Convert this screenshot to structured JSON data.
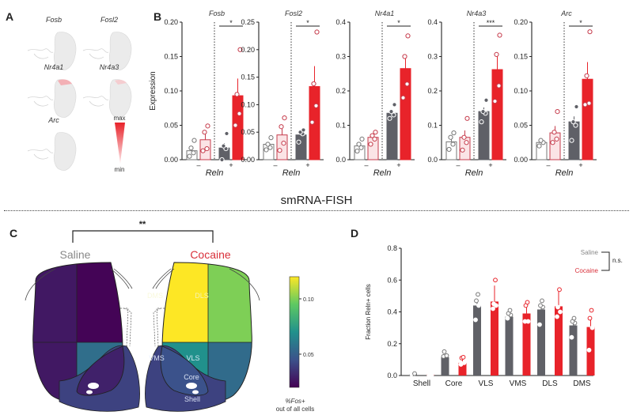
{
  "panels": {
    "A": {
      "letter": "A",
      "maps": [
        {
          "gene": "Fosb"
        },
        {
          "gene": "Fosl2"
        },
        {
          "gene": "Nr4a1"
        },
        {
          "gene": "Nr4a3"
        },
        {
          "gene": "Arc"
        }
      ],
      "legend": {
        "max": "max",
        "min": "min",
        "color": "#e8232a"
      }
    },
    "B": {
      "letter": "B"
    },
    "section_title": "smRNA-FISH",
    "C": {
      "letter": "C",
      "significance": "**",
      "saline_label": "Saline",
      "cocaine_label": "Cocaine",
      "saline_color": "#888888",
      "cocaine_color": "#d9303a",
      "region_labels": [
        "DMS",
        "DLS",
        "VMS",
        "VLS",
        "Core",
        "Shell"
      ],
      "colorbar": {
        "ticks": [
          "0.10",
          "0.05"
        ],
        "label_line1": "%Fos+",
        "label_line2": "out of all cells"
      }
    },
    "D": {
      "letter": "D"
    }
  },
  "chart_data": [
    {
      "type": "bar",
      "title": "Fosb",
      "ylabel": "Expression",
      "xlabel": "Reln",
      "xtick_labels": [
        "–",
        "+"
      ],
      "ylim": [
        0,
        0.2
      ],
      "yticks": [
        "0.00",
        "0.05",
        "0.10",
        "0.15",
        "0.20"
      ],
      "ytick_values": [
        0,
        0.05,
        0.1,
        0.15,
        0.2
      ],
      "significance": "*",
      "series": [
        {
          "name": "Reln- Saline",
          "value": 0.013,
          "err": 0.005,
          "points": [
            0.005,
            0.01,
            0.017,
            0.028
          ]
        },
        {
          "name": "Reln- Cocaine",
          "value": 0.029,
          "err": 0.008,
          "points": [
            0.013,
            0.016,
            0.04,
            0.049
          ]
        },
        {
          "name": "Reln+ Saline",
          "value": 0.017,
          "err": 0.007,
          "points": [
            0.0,
            0.016,
            0.02,
            0.038
          ]
        },
        {
          "name": "Reln+ Cocaine",
          "value": 0.093,
          "err": 0.025,
          "points": [
            0.05,
            0.067,
            0.095,
            0.16
          ]
        }
      ]
    },
    {
      "type": "bar",
      "title": "Fosl2",
      "ylabel": "",
      "xlabel": "Reln",
      "xtick_labels": [
        "–",
        "+"
      ],
      "ylim": [
        0,
        0.25
      ],
      "yticks": [
        "0.00",
        "0.05",
        "0.10",
        "0.15",
        "0.20",
        "0.25"
      ],
      "ytick_values": [
        0,
        0.05,
        0.1,
        0.15,
        0.2,
        0.25
      ],
      "significance": "*",
      "series": [
        {
          "name": "Reln- Saline",
          "value": 0.028,
          "err": 0.004,
          "points": [
            0.018,
            0.022,
            0.028,
            0.04
          ]
        },
        {
          "name": "Reln- Cocaine",
          "value": 0.045,
          "err": 0.013,
          "points": [
            0.017,
            0.03,
            0.06,
            0.076
          ]
        },
        {
          "name": "Reln+ Saline",
          "value": 0.045,
          "err": 0.004,
          "points": [
            0.032,
            0.047,
            0.05,
            0.054
          ]
        },
        {
          "name": "Reln+ Cocaine",
          "value": 0.133,
          "err": 0.037,
          "points": [
            0.068,
            0.098,
            0.138,
            0.232
          ]
        }
      ]
    },
    {
      "type": "bar",
      "title": "Nr4a1",
      "ylabel": "",
      "xlabel": "Reln",
      "xtick_labels": [
        "–",
        "+"
      ],
      "ylim": [
        0,
        0.4
      ],
      "yticks": [
        "0.0",
        "0.1",
        "0.2",
        "0.3",
        "0.4"
      ],
      "ytick_values": [
        0,
        0.1,
        0.2,
        0.3,
        0.4
      ],
      "significance": "*",
      "series": [
        {
          "name": "Reln- Saline",
          "value": 0.04,
          "err": 0.008,
          "points": [
            0.025,
            0.035,
            0.045,
            0.06
          ]
        },
        {
          "name": "Reln- Cocaine",
          "value": 0.065,
          "err": 0.01,
          "points": [
            0.045,
            0.06,
            0.07,
            0.08
          ]
        },
        {
          "name": "Reln+ Saline",
          "value": 0.135,
          "err": 0.008,
          "points": [
            0.12,
            0.13,
            0.14,
            0.16
          ]
        },
        {
          "name": "Reln+ Cocaine",
          "value": 0.265,
          "err": 0.04,
          "points": [
            0.18,
            0.22,
            0.3,
            0.36
          ]
        }
      ]
    },
    {
      "type": "bar",
      "title": "Nr4a3",
      "ylabel": "",
      "xlabel": "Reln",
      "xtick_labels": [
        "–",
        "+"
      ],
      "ylim": [
        0,
        0.4
      ],
      "yticks": [
        "0.0",
        "0.1",
        "0.2",
        "0.3",
        "0.4"
      ],
      "ytick_values": [
        0,
        0.1,
        0.2,
        0.3,
        0.4
      ],
      "significance": "***",
      "series": [
        {
          "name": "Reln- Saline",
          "value": 0.052,
          "err": 0.012,
          "points": [
            0.03,
            0.045,
            0.065,
            0.078
          ]
        },
        {
          "name": "Reln- Cocaine",
          "value": 0.065,
          "err": 0.02,
          "points": [
            0.028,
            0.05,
            0.065,
            0.12
          ]
        },
        {
          "name": "Reln+ Saline",
          "value": 0.14,
          "err": 0.012,
          "points": [
            0.11,
            0.135,
            0.14,
            0.173
          ]
        },
        {
          "name": "Reln+ Cocaine",
          "value": 0.262,
          "err": 0.04,
          "points": [
            0.17,
            0.215,
            0.306,
            0.362
          ]
        }
      ]
    },
    {
      "type": "bar",
      "title": "Arc",
      "ylabel": "",
      "xlabel": "Reln",
      "xtick_labels": [
        "–",
        "+"
      ],
      "ylim": [
        0,
        0.2
      ],
      "yticks": [
        "0.00",
        "0.05",
        "0.10",
        "0.15",
        "0.20"
      ],
      "ytick_values": [
        0,
        0.05,
        0.1,
        0.15,
        0.2
      ],
      "significance": "*",
      "series": [
        {
          "name": "Reln- Saline",
          "value": 0.025,
          "err": 0.003,
          "points": [
            0.02,
            0.025,
            0.028
          ]
        },
        {
          "name": "Reln- Cocaine",
          "value": 0.039,
          "err": 0.01,
          "points": [
            0.025,
            0.03,
            0.04,
            0.07
          ]
        },
        {
          "name": "Reln+ Saline",
          "value": 0.055,
          "err": 0.008,
          "points": [
            0.028,
            0.05,
            0.055,
            0.077
          ]
        },
        {
          "name": "Reln+ Cocaine",
          "value": 0.117,
          "err": 0.025,
          "points": [
            0.08,
            0.082,
            0.122,
            0.186
          ]
        }
      ]
    },
    {
      "type": "heatmap",
      "title": "%Fos+ out of all cells",
      "colorbar_range": [
        0.02,
        0.12
      ],
      "groups": [
        "Saline",
        "Cocaine"
      ],
      "regions": [
        "DMS",
        "DLS",
        "VMS",
        "VLS",
        "Core",
        "Shell"
      ],
      "values": {
        "Saline": {
          "DMS": 0.021,
          "DLS": 0.027,
          "VMS": 0.056,
          "VLS": 0.027,
          "Core": 0.03,
          "Shell": 0.04
        },
        "Cocaine": {
          "DMS": 0.12,
          "DLS": 0.1,
          "VMS": 0.07,
          "VLS": 0.055,
          "Core": 0.045,
          "Shell": 0.04
        }
      }
    },
    {
      "type": "bar",
      "title": "",
      "ylabel": "Fraction Reln+ cells",
      "xlabel": "",
      "categories": [
        "Shell",
        "Core",
        "VLS",
        "VMS",
        "DLS",
        "DMS"
      ],
      "ylim": [
        0,
        0.8
      ],
      "yticks": [
        "0.0",
        "0.2",
        "0.4",
        "0.6",
        "0.8"
      ],
      "ytick_values": [
        0,
        0.2,
        0.4,
        0.6,
        0.8
      ],
      "legend": {
        "entries": [
          "Saline",
          "Cocaine"
        ],
        "significance": "n.s.",
        "placement": "top-right"
      },
      "series": [
        {
          "name": "Saline",
          "color": "#606167",
          "values": [
            0.01,
            0.115,
            0.44,
            0.37,
            0.415,
            0.315
          ],
          "errs": [
            0.003,
            0.01,
            0.035,
            0.02,
            0.03,
            0.025
          ],
          "points": [
            [
              0.01,
              0.012
            ],
            [
              0.12,
              0.125,
              0.15
            ],
            [
              0.35,
              0.44,
              0.47,
              0.51
            ],
            [
              0.36,
              0.38,
              0.39,
              0.41
            ],
            [
              0.32,
              0.43,
              0.44,
              0.47
            ],
            [
              0.24,
              0.33,
              0.34,
              0.36
            ]
          ]
        },
        {
          "name": "Cocaine",
          "color": "#e8232a",
          "values": [
            0.008,
            0.08,
            0.465,
            0.39,
            0.435,
            0.305
          ],
          "errs": [
            0.002,
            0.02,
            0.1,
            0.05,
            0.1,
            0.06
          ],
          "points": [
            [
              0.005,
              0.008
            ],
            [
              0.07,
              0.08,
              0.11,
              0.115
            ],
            [
              0.42,
              0.44,
              0.45,
              0.6
            ],
            [
              0.34,
              0.34,
              0.44,
              0.46
            ],
            [
              0.37,
              0.4,
              0.43,
              0.54
            ],
            [
              0.16,
              0.3,
              0.36,
              0.41
            ]
          ]
        }
      ]
    }
  ]
}
